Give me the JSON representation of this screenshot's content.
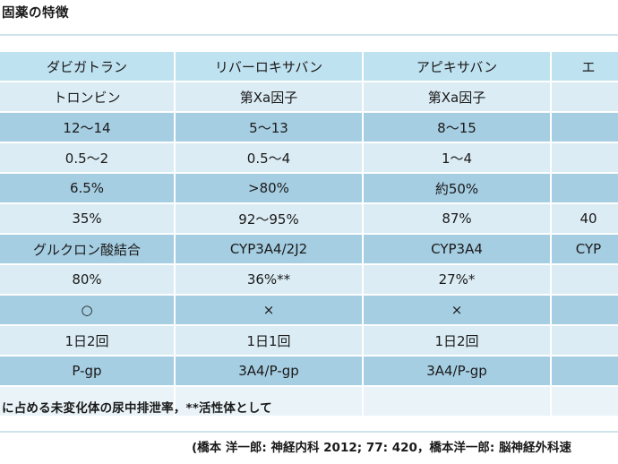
{
  "title": "固薬の特徴",
  "table": {
    "header": [
      "ダビガトラン",
      "リバーロキサバン",
      "アピキサバン",
      "エ"
    ],
    "rows": [
      [
        "トロンビン",
        "第Xa因子",
        "第Xa因子",
        ""
      ],
      [
        "12〜14",
        "5〜13",
        "8〜15",
        ""
      ],
      [
        "0.5〜2",
        "0.5〜4",
        "1〜4",
        ""
      ],
      [
        "6.5%",
        ">80%",
        "約50%",
        ""
      ],
      [
        "35%",
        "92〜95%",
        "87%",
        "40"
      ],
      [
        "グルクロン酸結合",
        "CYP3A4/2J2",
        "CYP3A4",
        "CYP"
      ],
      [
        "80%",
        "36%**",
        "27%*",
        ""
      ],
      [
        "○",
        "×",
        "×",
        ""
      ],
      [
        "1日2回",
        "1日1回",
        "1日2回",
        ""
      ],
      [
        "P-gp",
        "3A4/P-gp",
        "3A4/P-gp",
        ""
      ]
    ]
  },
  "footnote": "に占める未変化体の尿中排泄率，**活性体として",
  "source": "(橋本 洋一郎: 神経内科 2012; 77: 420，橋本洋一郎: 脳神経外科速"
}
